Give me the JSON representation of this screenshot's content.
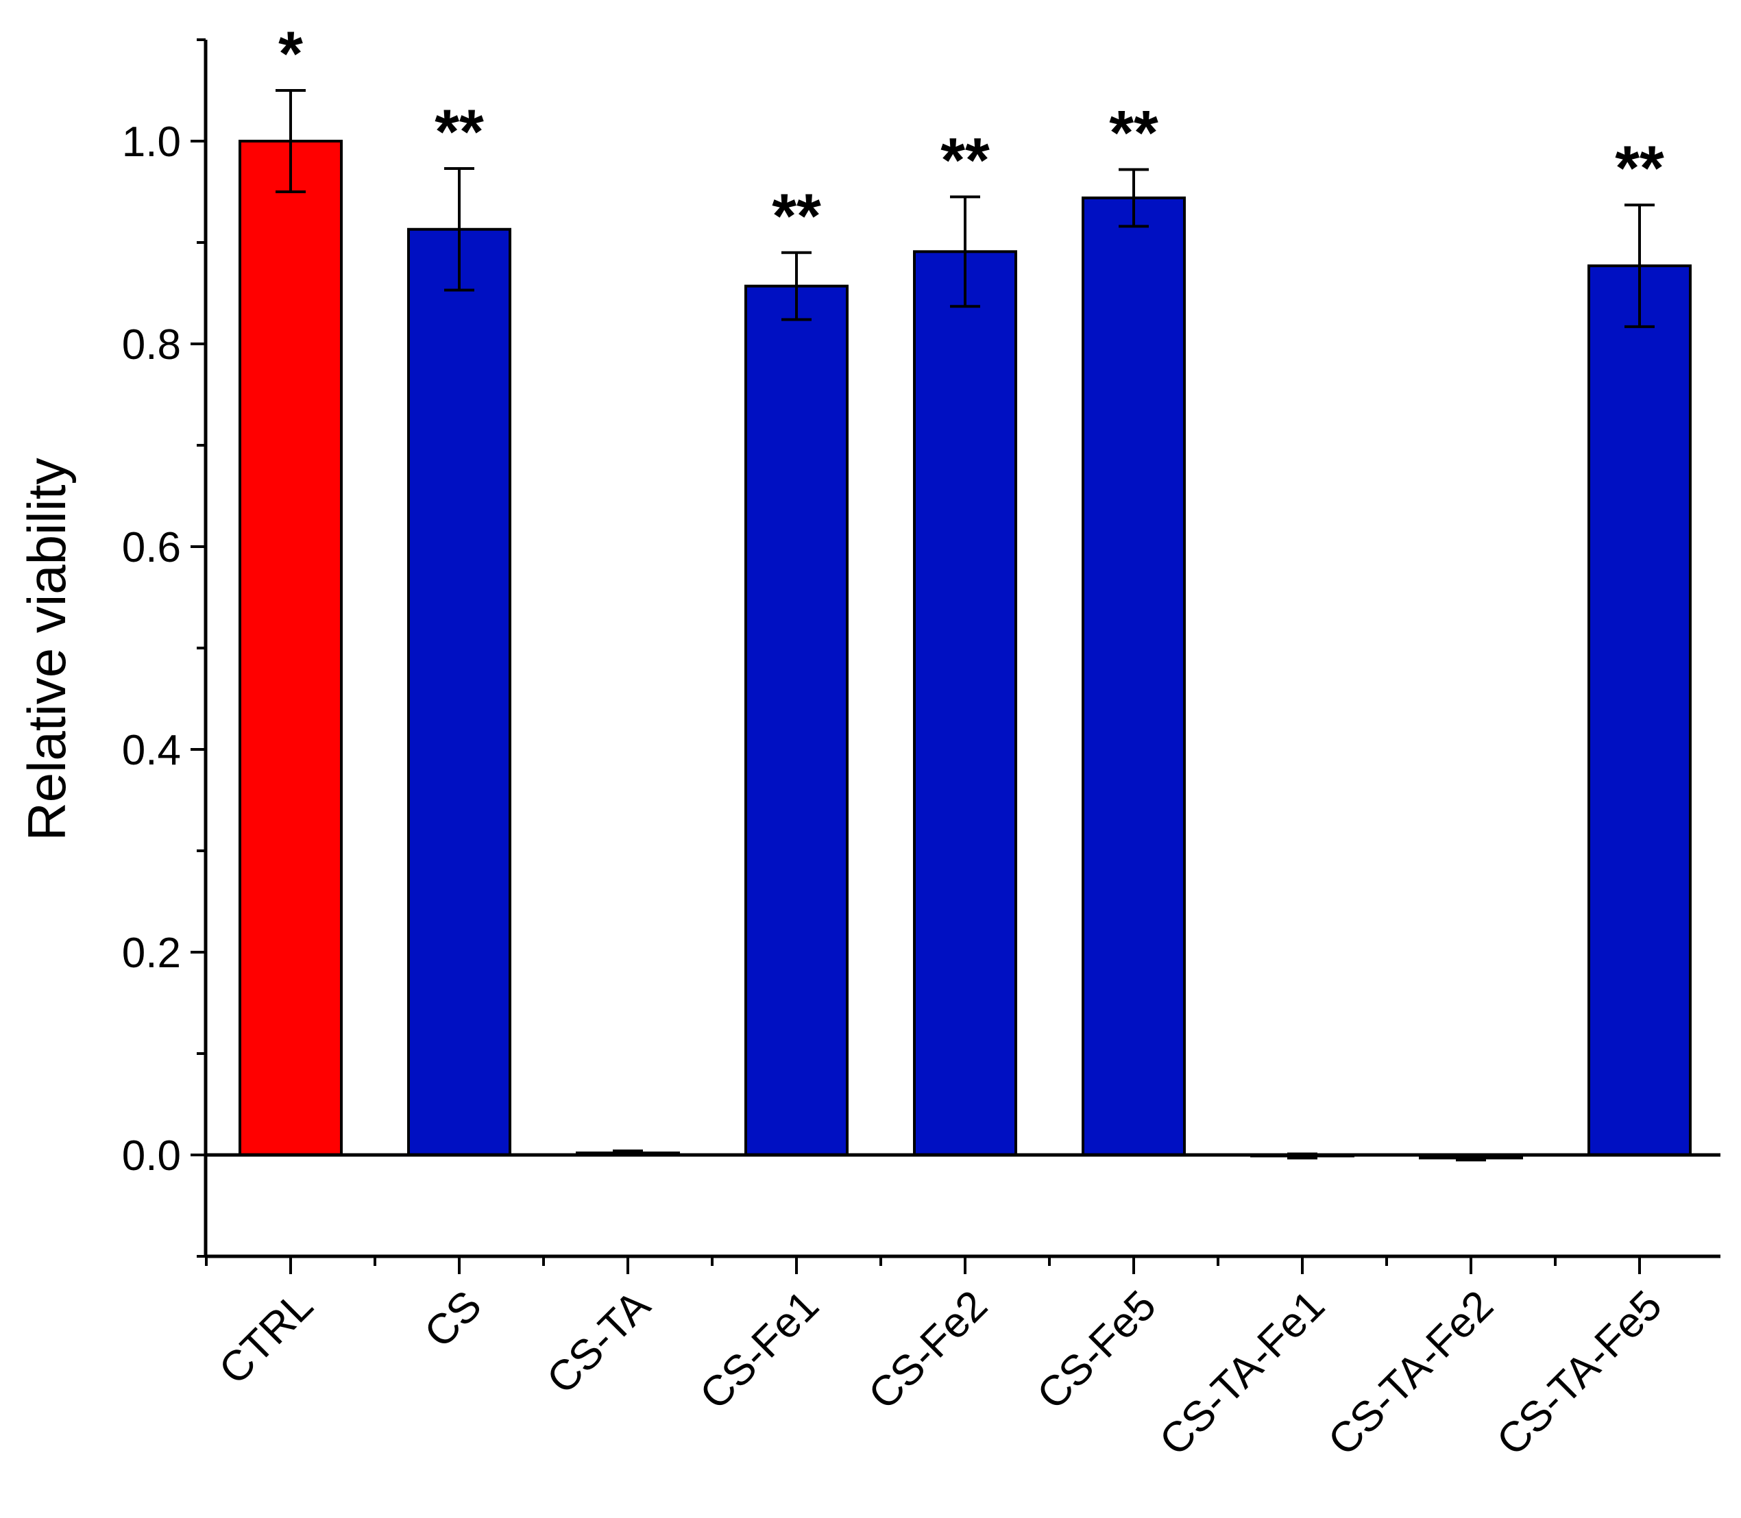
{
  "chart_data": {
    "type": "bar",
    "title": "",
    "xlabel": "",
    "ylabel": "Relative viability",
    "ylim": [
      -0.1,
      1.1
    ],
    "yticks": [
      0.0,
      0.2,
      0.4,
      0.6,
      0.8,
      1.0
    ],
    "ytick_labels": [
      "0.0",
      "0.2",
      "0.4",
      "0.6",
      "0.8",
      "1.0"
    ],
    "grid": false,
    "legend": "none",
    "categories": [
      "CTRL",
      "CS",
      "CS-TA",
      "CS-Fe1",
      "CS-Fe2",
      "CS-Fe5",
      "CS-TA-Fe1",
      "CS-TA-Fe2",
      "CS-TA-Fe5"
    ],
    "values": [
      1.0,
      0.913,
      0.002,
      0.857,
      0.891,
      0.944,
      -0.001,
      -0.003,
      0.877
    ],
    "errors": [
      0.05,
      0.06,
      0.002,
      0.033,
      0.054,
      0.028,
      0.002,
      0.002,
      0.06
    ],
    "significance": [
      "*",
      "**",
      "",
      "**",
      "**",
      "**",
      "",
      "",
      "**"
    ],
    "colors": [
      "#ff0000",
      "#0010c2",
      "#0010c2",
      "#0010c2",
      "#0010c2",
      "#0010c2",
      "#0010c2",
      "#0010c2",
      "#0010c2"
    ]
  }
}
